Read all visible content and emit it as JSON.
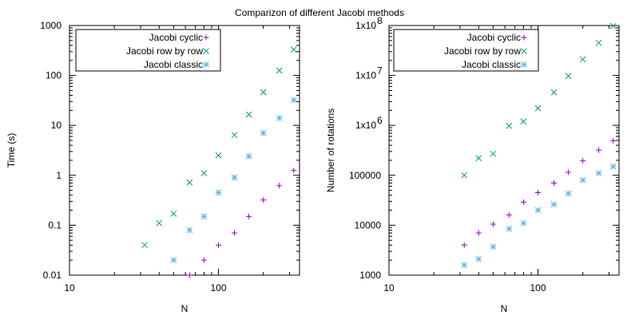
{
  "title": "Comparizon of different Jacobi methods",
  "colors": {
    "cyclic": "#9400d3",
    "rowbyrow": "#009e73",
    "classic": "#56b4e9"
  },
  "chart_data": [
    {
      "type": "scatter",
      "xscale": "log",
      "yscale": "log",
      "xlim": [
        10,
        350
      ],
      "ylim": [
        0.01,
        1000
      ],
      "xlabel": "N",
      "ylabel": "Time (s)",
      "x_ticks": [
        {
          "value": 10,
          "label": "10"
        },
        {
          "value": 100,
          "label": "100"
        }
      ],
      "y_ticks": [
        {
          "value": 0.01,
          "label": "0.01"
        },
        {
          "value": 0.1,
          "label": "0.1"
        },
        {
          "value": 1,
          "label": "1"
        },
        {
          "value": 10,
          "label": "10"
        },
        {
          "value": 100,
          "label": "100"
        },
        {
          "value": 1000,
          "label": "1000"
        }
      ],
      "legend_position": "top-left",
      "series": [
        {
          "name": "Jacobi cyclic",
          "marker": "plus",
          "color": "#9400d3",
          "points": [
            [
              64,
              0.01
            ],
            [
              80,
              0.02
            ],
            [
              100,
              0.04
            ],
            [
              128,
              0.07
            ],
            [
              160,
              0.15
            ],
            [
              200,
              0.32
            ],
            [
              256,
              0.62
            ],
            [
              320,
              1.25
            ]
          ]
        },
        {
          "name": "Jacobi row by row",
          "marker": "cross",
          "color": "#009e73",
          "points": [
            [
              32,
              0.04
            ],
            [
              40,
              0.11
            ],
            [
              50,
              0.17
            ],
            [
              64,
              0.72
            ],
            [
              80,
              1.1
            ],
            [
              100,
              2.5
            ],
            [
              128,
              6.4
            ],
            [
              160,
              16.5
            ],
            [
              200,
              46
            ],
            [
              256,
              125
            ],
            [
              320,
              330
            ]
          ]
        },
        {
          "name": "Jacobi classic",
          "marker": "star",
          "color": "#56b4e9",
          "points": [
            [
              50,
              0.02
            ],
            [
              64,
              0.08
            ],
            [
              80,
              0.15
            ],
            [
              100,
              0.45
            ],
            [
              128,
              0.9
            ],
            [
              160,
              2.4
            ],
            [
              200,
              7
            ],
            [
              256,
              14
            ],
            [
              320,
              32
            ]
          ]
        }
      ]
    },
    {
      "type": "scatter",
      "xscale": "log",
      "yscale": "log",
      "xlim": [
        10,
        350
      ],
      "ylim": [
        1000,
        100000000
      ],
      "xlabel": "N",
      "ylabel": "Number of rotations",
      "x_ticks": [
        {
          "value": 10,
          "label": "10"
        },
        {
          "value": 100,
          "label": "100"
        }
      ],
      "y_ticks": [
        {
          "value": 1000,
          "label": "1000"
        },
        {
          "value": 10000,
          "label": "10000"
        },
        {
          "value": 100000,
          "label": "100000"
        },
        {
          "value": 1000000,
          "label": "1x10",
          "sup": "6"
        },
        {
          "value": 10000000,
          "label": "1x10",
          "sup": "7"
        },
        {
          "value": 100000000,
          "label": "1x10",
          "sup": "8"
        }
      ],
      "legend_position": "top-left",
      "series": [
        {
          "name": "Jacobi cyclic",
          "marker": "plus",
          "color": "#9400d3",
          "points": [
            [
              32,
              4000
            ],
            [
              40,
              7000
            ],
            [
              50,
              10500
            ],
            [
              64,
              16000
            ],
            [
              80,
              29000
            ],
            [
              100,
              45000
            ],
            [
              128,
              70000
            ],
            [
              160,
              115000
            ],
            [
              200,
              195000
            ],
            [
              256,
              320000
            ],
            [
              320,
              490000
            ]
          ]
        },
        {
          "name": "Jacobi row by row",
          "marker": "cross",
          "color": "#009e73",
          "points": [
            [
              32,
              100000
            ],
            [
              40,
              220000
            ],
            [
              50,
              270000
            ],
            [
              64,
              980000
            ],
            [
              80,
              1200000
            ],
            [
              100,
              2200000
            ],
            [
              128,
              4600000
            ],
            [
              160,
              9800000
            ],
            [
              200,
              21000000
            ],
            [
              256,
              45000000
            ],
            [
              320,
              98000000
            ]
          ]
        },
        {
          "name": "Jacobi classic",
          "marker": "star",
          "color": "#56b4e9",
          "points": [
            [
              32,
              1600
            ],
            [
              40,
              2100
            ],
            [
              50,
              3700
            ],
            [
              64,
              8500
            ],
            [
              80,
              11000
            ],
            [
              100,
              20000
            ],
            [
              128,
              26000
            ],
            [
              160,
              43000
            ],
            [
              200,
              80000
            ],
            [
              256,
              110000
            ],
            [
              320,
              150000
            ]
          ]
        }
      ]
    }
  ]
}
